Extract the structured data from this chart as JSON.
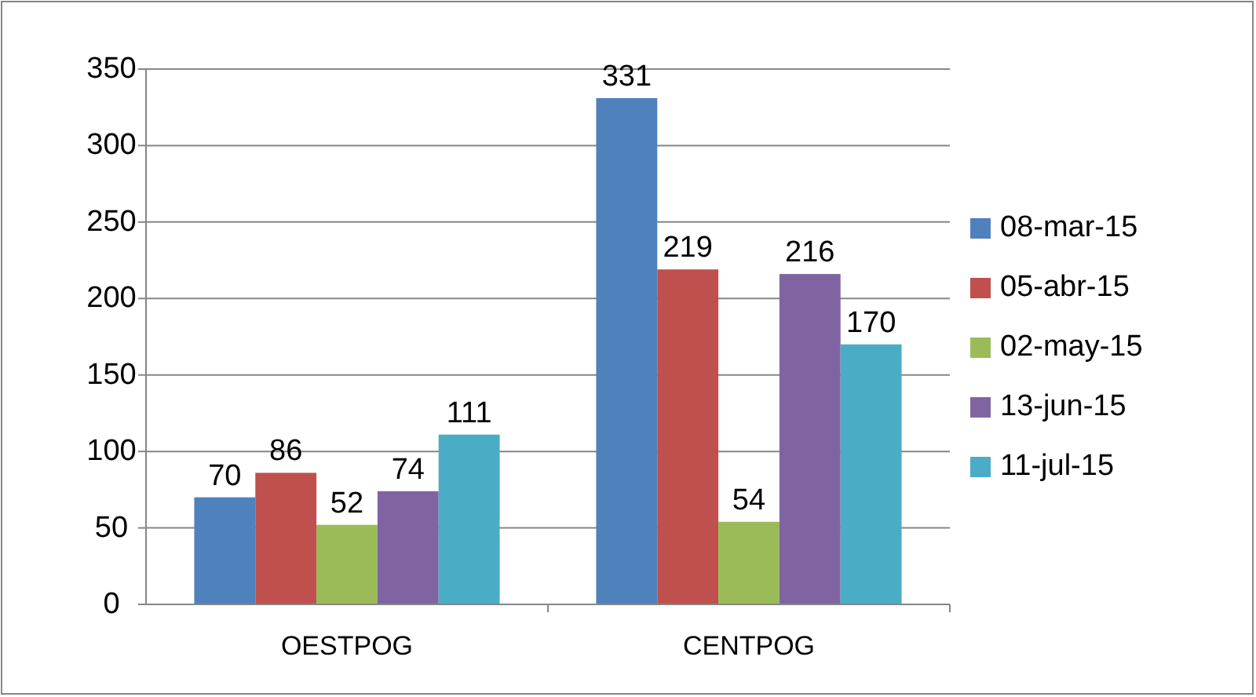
{
  "chart_data": {
    "type": "bar",
    "categories": [
      "OESTPOG",
      "CENTPOG"
    ],
    "series": [
      {
        "name": "08-mar-15",
        "color": "#4f81bd",
        "values": [
          70,
          331
        ]
      },
      {
        "name": "05-abr-15",
        "color": "#c0504d",
        "values": [
          86,
          219
        ]
      },
      {
        "name": "02-may-15",
        "color": "#9bbb59",
        "values": [
          52,
          54
        ]
      },
      {
        "name": "13-jun-15",
        "color": "#8064a2",
        "values": [
          74,
          216
        ]
      },
      {
        "name": "11-jul-15",
        "color": "#4bacc6",
        "values": [
          111,
          170
        ]
      }
    ],
    "ylim": [
      0,
      350
    ],
    "yticks": [
      0,
      50,
      100,
      150,
      200,
      250,
      300,
      350
    ],
    "grid": "y",
    "legend": "right",
    "data_labels": true
  }
}
